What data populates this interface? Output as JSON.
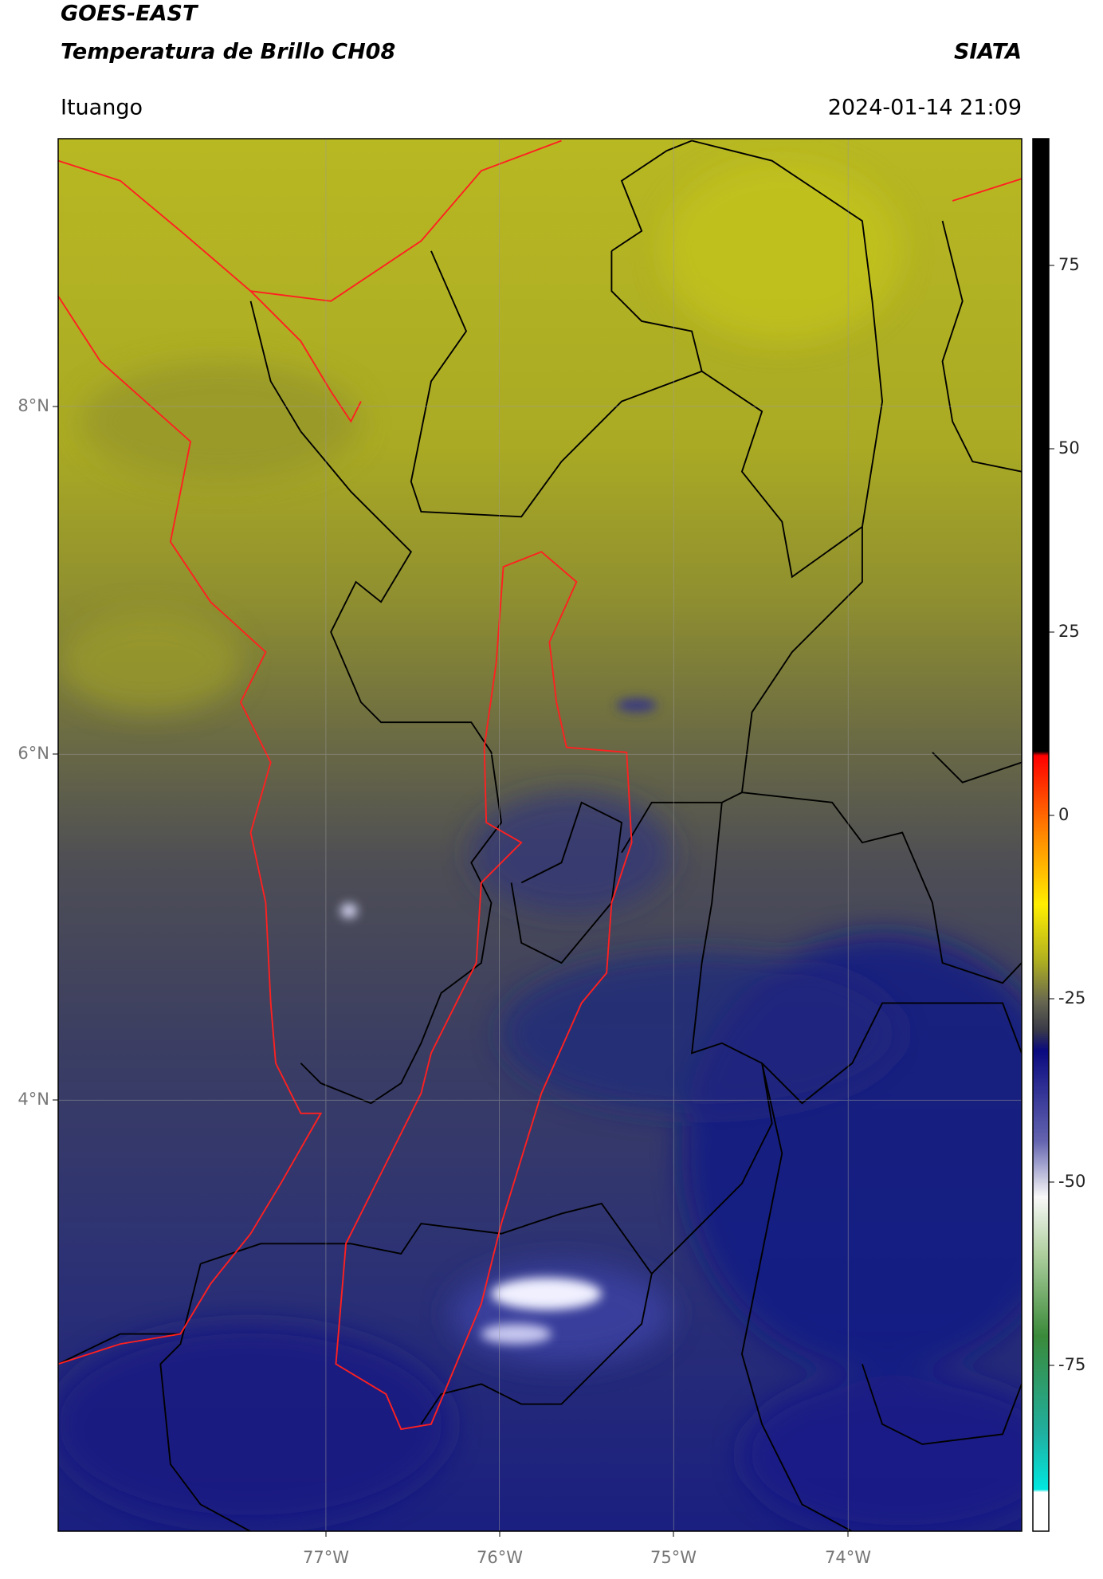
{
  "header": {
    "title": "GOES-EAST",
    "subtitle": "Temperatura de Brillo CH08",
    "source": "SIATA",
    "location": "Ituango",
    "timestamp": "2024-01-14 21:09"
  },
  "map": {
    "lat_labels": [
      "8°N",
      "6°N",
      "4°N"
    ],
    "lon_labels": [
      "77°W",
      "76°W",
      "75°W",
      "74°W"
    ]
  },
  "colorbar": {
    "ticks": [
      75,
      50,
      25,
      0,
      -25,
      -50,
      -75
    ]
  }
}
